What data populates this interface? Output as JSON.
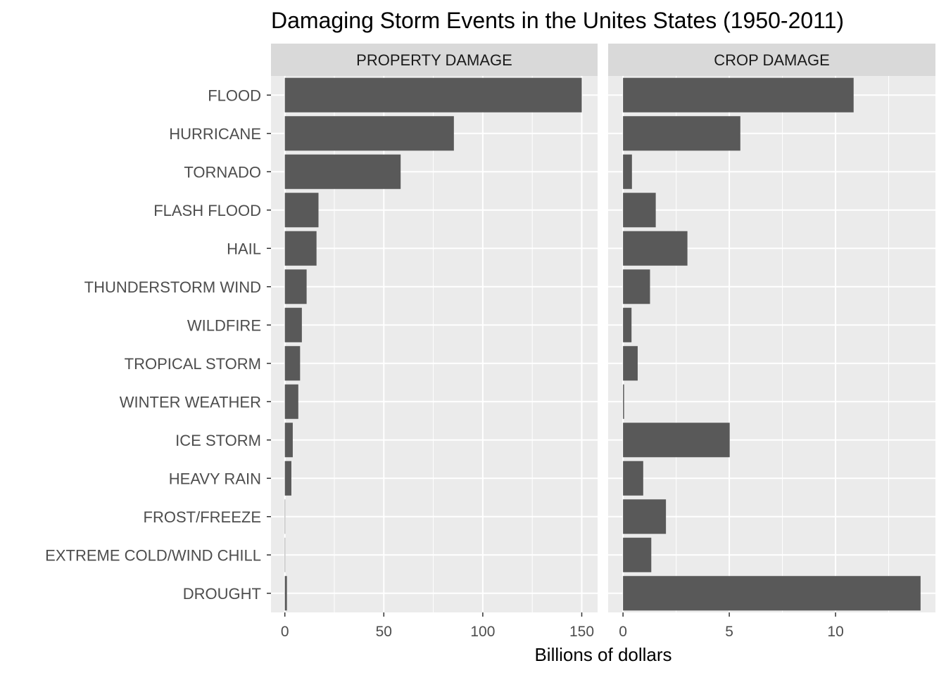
{
  "chart_data": {
    "type": "bar",
    "orientation": "horizontal",
    "title": "Damaging Storm Events in the Unites States (1950-2011)",
    "xlabel": "Billions of dollars",
    "ylabel": "",
    "grid": true,
    "legend": "none",
    "bar_color": "#595959",
    "panel_background": "#ebebeb",
    "strip_background": "#d9d9d9",
    "categories": [
      "FLOOD",
      "HURRICANE",
      "TORNADO",
      "FLASH FLOOD",
      "HAIL",
      "THUNDERSTORM WIND",
      "WILDFIRE",
      "TROPICAL STORM",
      "WINTER WEATHER",
      "ICE STORM",
      "HEAVY RAIN",
      "FROST/FREEZE",
      "EXTREME COLD/WIND CHILL",
      "DROUGHT"
    ],
    "facets": [
      {
        "label": "PROPERTY DAMAGE",
        "xlim": [
          -7,
          158
        ],
        "ticks": [
          0,
          50,
          100,
          150
        ],
        "values": [
          150.0,
          85.4,
          58.5,
          17.0,
          16.0,
          11.0,
          8.6,
          7.7,
          6.8,
          4.0,
          3.3,
          0.1,
          0.1,
          1.05
        ]
      },
      {
        "label": "CROP DAMAGE",
        "xlim": [
          -0.7,
          14.7
        ],
        "ticks": [
          0,
          5,
          10
        ],
        "values": [
          10.85,
          5.52,
          0.42,
          1.54,
          3.03,
          1.27,
          0.4,
          0.69,
          0.05,
          5.02,
          0.95,
          2.02,
          1.33,
          14.0
        ]
      }
    ]
  }
}
